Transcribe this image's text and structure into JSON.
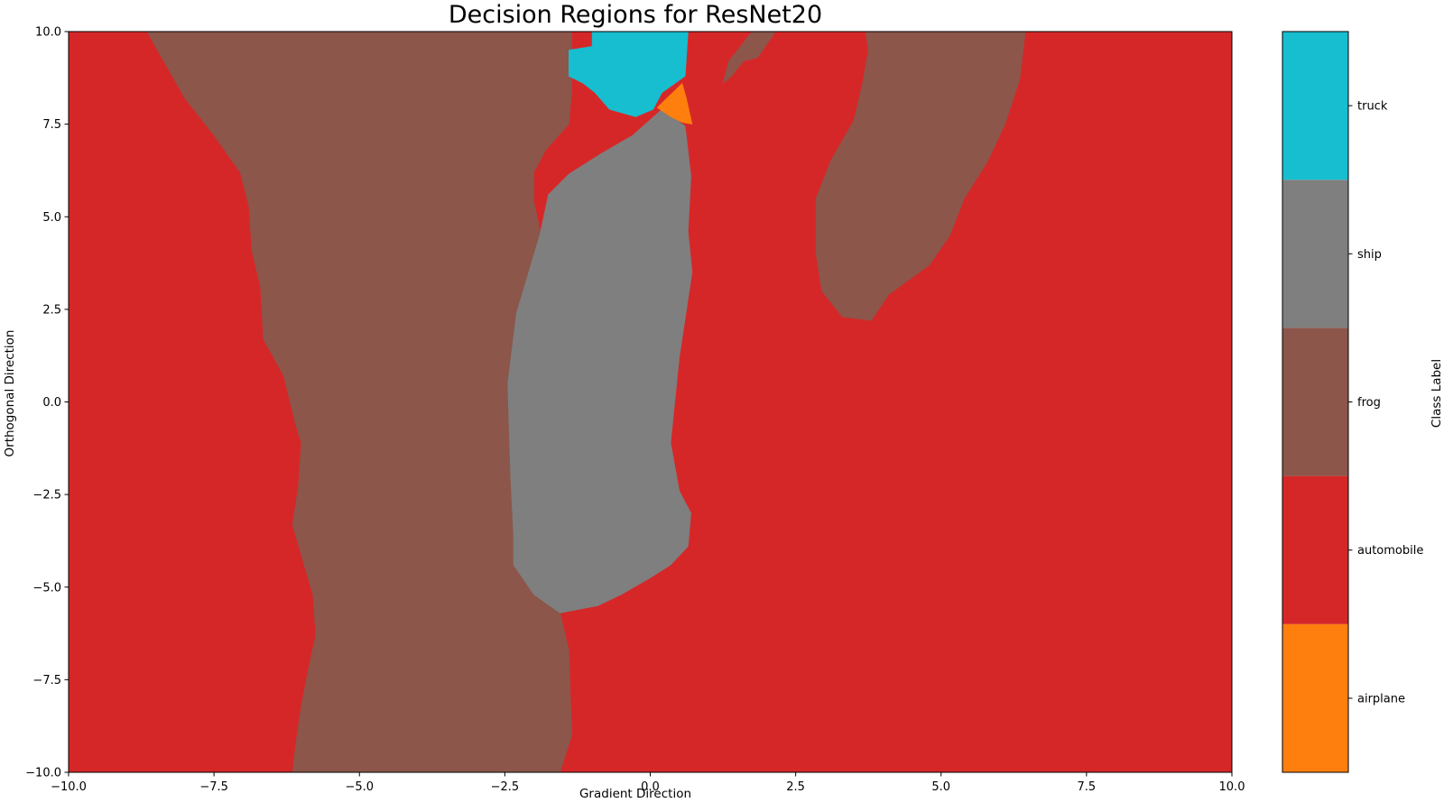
{
  "chart_data": {
    "type": "heatmap",
    "title": "Decision Regions for ResNet20",
    "xlabel": "Gradient Direction",
    "ylabel": "Orthogonal Direction",
    "xlim": [
      -10,
      10
    ],
    "ylim": [
      -10,
      10
    ],
    "x_ticks": [
      -10.0,
      -7.5,
      -5.0,
      -2.5,
      0.0,
      2.5,
      5.0,
      7.5,
      10.0
    ],
    "y_ticks": [
      -10.0,
      -7.5,
      -5.0,
      -2.5,
      0.0,
      2.5,
      5.0,
      7.5,
      10.0
    ],
    "x_tick_labels": [
      "−10.0",
      "−7.5",
      "−5.0",
      "−2.5",
      "0.0",
      "2.5",
      "5.0",
      "7.5",
      "10.0"
    ],
    "y_tick_labels": [
      "−10.0",
      "−7.5",
      "−5.0",
      "−2.5",
      "0.0",
      "2.5",
      "5.0",
      "7.5",
      "10.0"
    ],
    "grid": false,
    "background_class": "automobile",
    "colorbar": {
      "label": "Class Label",
      "classes": [
        {
          "name": "airplane",
          "color": "#ff7f0e"
        },
        {
          "name": "automobile",
          "color": "#d62728"
        },
        {
          "name": "frog",
          "color": "#8c564b"
        },
        {
          "name": "ship",
          "color": "#7f7f7f"
        },
        {
          "name": "truck",
          "color": "#17becf"
        }
      ]
    },
    "regions": [
      {
        "class": "frog",
        "color": "#8c564b",
        "boundary": [
          [
            -8.65,
            10
          ],
          [
            -8.4,
            9.3
          ],
          [
            -8.0,
            8.2
          ],
          [
            -7.5,
            7.2
          ],
          [
            -7.05,
            6.2
          ],
          [
            -6.9,
            5.3
          ],
          [
            -6.85,
            4.1
          ],
          [
            -6.7,
            3.1
          ],
          [
            -6.65,
            1.7
          ],
          [
            -6.3,
            0.7
          ],
          [
            -6.1,
            -0.6
          ],
          [
            -6.0,
            -1.1
          ],
          [
            -6.05,
            -2.3
          ],
          [
            -6.15,
            -3.3
          ],
          [
            -5.95,
            -4.4
          ],
          [
            -5.8,
            -5.2
          ],
          [
            -5.75,
            -6.3
          ],
          [
            -5.85,
            -7.0
          ],
          [
            -6.0,
            -8.2
          ],
          [
            -6.1,
            -9.3
          ],
          [
            -6.15,
            -10
          ],
          [
            -1.55,
            -10
          ],
          [
            -1.35,
            -9.0
          ],
          [
            -1.4,
            -6.7
          ],
          [
            -1.55,
            -5.7
          ],
          [
            -2.0,
            -5.2
          ],
          [
            -2.35,
            -4.4
          ],
          [
            -2.35,
            -3.6
          ],
          [
            -2.4,
            -2.0
          ],
          [
            -2.45,
            0.5
          ],
          [
            -2.3,
            2.4
          ],
          [
            -1.85,
            4.3
          ],
          [
            -2.0,
            5.4
          ],
          [
            -2.0,
            6.2
          ],
          [
            -1.8,
            6.8
          ],
          [
            -1.4,
            7.5
          ],
          [
            -1.35,
            8.4
          ],
          [
            -1.35,
            10
          ]
        ]
      },
      {
        "class": "ship",
        "color": "#7f7f7f",
        "boundary": [
          [
            0.2,
            7.9
          ],
          [
            0.6,
            7.45
          ],
          [
            0.7,
            6.1
          ],
          [
            0.65,
            4.6
          ],
          [
            0.72,
            3.5
          ],
          [
            0.5,
            1.2
          ],
          [
            0.35,
            -1.1
          ],
          [
            0.5,
            -2.4
          ],
          [
            0.7,
            -3.0
          ],
          [
            0.65,
            -3.9
          ],
          [
            0.35,
            -4.4
          ],
          [
            0.0,
            -4.75
          ],
          [
            -0.5,
            -5.2
          ],
          [
            -0.9,
            -5.5
          ],
          [
            -1.55,
            -5.7
          ],
          [
            -2.0,
            -5.2
          ],
          [
            -2.35,
            -4.4
          ],
          [
            -2.35,
            -3.6
          ],
          [
            -2.4,
            -2.0
          ],
          [
            -2.45,
            0.5
          ],
          [
            -2.3,
            2.4
          ],
          [
            -1.9,
            4.5
          ],
          [
            -1.75,
            5.6
          ],
          [
            -1.4,
            6.15
          ],
          [
            -0.85,
            6.7
          ],
          [
            -0.3,
            7.2
          ]
        ]
      },
      {
        "class": "truck",
        "color": "#17becf",
        "boundary": [
          [
            -1.0,
            10
          ],
          [
            0.65,
            10
          ],
          [
            0.6,
            8.8
          ],
          [
            0.2,
            8.35
          ],
          [
            0.05,
            7.9
          ],
          [
            -0.25,
            7.7
          ],
          [
            -0.7,
            7.9
          ],
          [
            -0.95,
            8.35
          ],
          [
            -1.15,
            8.6
          ],
          [
            -1.4,
            8.8
          ],
          [
            -1.4,
            9.5
          ],
          [
            -1.0,
            9.6
          ]
        ]
      },
      {
        "class": "airplane",
        "color": "#ff7f0e",
        "boundary": [
          [
            0.55,
            8.6
          ],
          [
            0.62,
            8.2
          ],
          [
            0.72,
            7.5
          ],
          [
            0.55,
            7.55
          ],
          [
            0.35,
            7.7
          ],
          [
            0.12,
            7.95
          ]
        ]
      },
      {
        "class": "frog",
        "color": "#8c564b",
        "boundary": [
          [
            2.15,
            10
          ],
          [
            1.85,
            9.3
          ],
          [
            1.6,
            9.2
          ],
          [
            1.4,
            8.8
          ],
          [
            1.25,
            8.6
          ],
          [
            1.35,
            9.2
          ],
          [
            1.6,
            9.7
          ],
          [
            1.75,
            10
          ]
        ]
      },
      {
        "class": "frog",
        "color": "#8c564b",
        "boundary": [
          [
            3.7,
            10
          ],
          [
            6.45,
            10
          ],
          [
            6.35,
            8.7
          ],
          [
            6.1,
            7.5
          ],
          [
            5.8,
            6.5
          ],
          [
            5.4,
            5.5
          ],
          [
            5.15,
            4.5
          ],
          [
            4.8,
            3.7
          ],
          [
            4.1,
            2.9
          ],
          [
            3.8,
            2.2
          ],
          [
            3.3,
            2.3
          ],
          [
            2.95,
            3.0
          ],
          [
            2.85,
            4.0
          ],
          [
            2.85,
            5.5
          ],
          [
            3.1,
            6.5
          ],
          [
            3.5,
            7.6
          ],
          [
            3.65,
            8.6
          ],
          [
            3.75,
            9.5
          ]
        ]
      }
    ]
  }
}
